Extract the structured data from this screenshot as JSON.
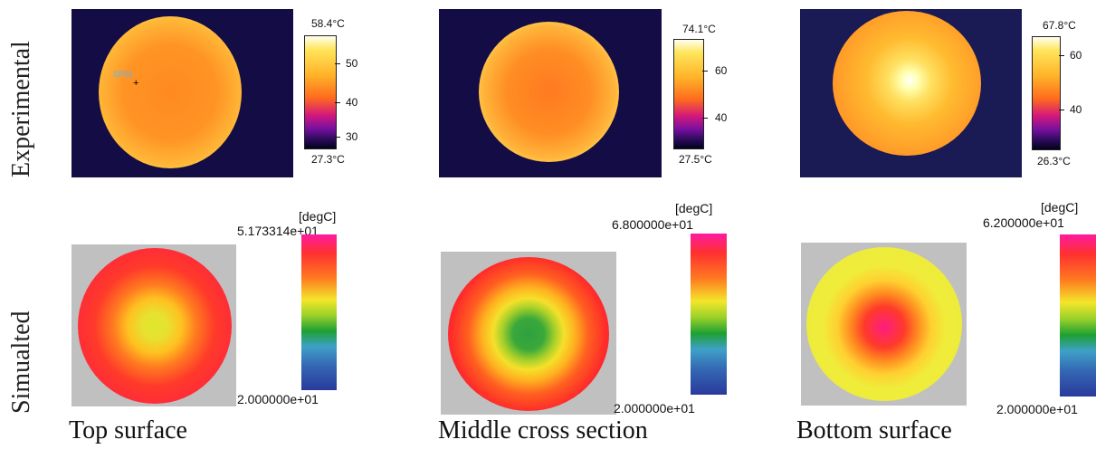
{
  "rows": {
    "experimental": "Experimental",
    "simulated": "Simualted"
  },
  "captions": {
    "top": "Top surface",
    "middle": "Middle cross section",
    "bottom": "Bottom surface"
  },
  "experimental": [
    {
      "max": "58.4°C",
      "min": "27.3°C",
      "ticks": [
        "50",
        "40",
        "30"
      ],
      "spot_label": "SP01"
    },
    {
      "max": "74.1°C",
      "min": "27.5°C",
      "ticks": [
        "60",
        "40"
      ]
    },
    {
      "max": "67.8°C",
      "min": "26.3°C",
      "ticks": [
        "60",
        "40"
      ]
    }
  ],
  "simulated": [
    {
      "unit": "[degC]",
      "max": "5.173314e+01",
      "min": "2.000000e+01"
    },
    {
      "unit": "[degC]",
      "max": "6.800000e+01",
      "min": "2.000000e+01"
    },
    {
      "unit": "[degC]",
      "max": "6.200000e+01",
      "min": "2.000000e+01"
    }
  ]
}
